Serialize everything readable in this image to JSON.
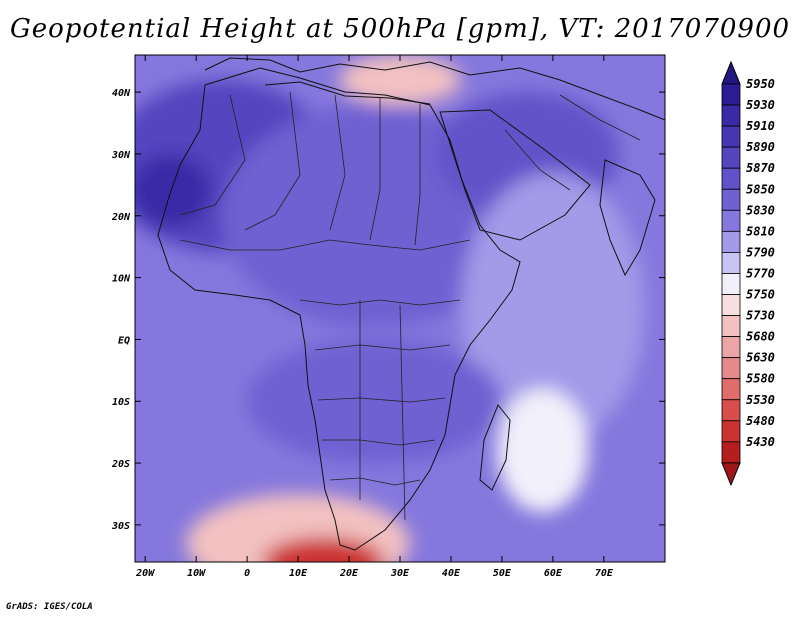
{
  "title": "Geopotential Height at 500hPa [gpm], VT: 2017070900",
  "credit": "GrADS: IGES/COLA",
  "lat_labels": [
    "40N",
    "30N",
    "20N",
    "10N",
    "EQ",
    "10S",
    "20S",
    "30S"
  ],
  "lon_labels": [
    "20W",
    "10W",
    "0",
    "10E",
    "20E",
    "30E",
    "40E",
    "50E",
    "60E",
    "70E"
  ],
  "legend": {
    "values": [
      "5950",
      "5930",
      "5910",
      "5890",
      "5870",
      "5850",
      "5830",
      "5810",
      "5790",
      "5770",
      "5750",
      "5730",
      "5680",
      "5630",
      "5580",
      "5530",
      "5480",
      "5430"
    ],
    "colors": [
      "#2c1c94",
      "#3a2aa6",
      "#4636b2",
      "#5545bf",
      "#6252c9",
      "#6f61d2",
      "#8577dd",
      "#a39ae8",
      "#c8c3f2",
      "#f2f0fb",
      "#f8dfdf",
      "#f3c1c1",
      "#eaa6a6",
      "#e58a8a",
      "#e06c6c",
      "#d94d4d",
      "#cc3232",
      "#b41e1e"
    ],
    "top_arrow_color": "#231784",
    "bottom_arrow_color": "#a01515"
  },
  "map": {
    "lon_range": [
      -22,
      82
    ],
    "lat_range": [
      -36,
      46
    ],
    "ocean_color": "#8577dd",
    "frame_color": "#000000"
  },
  "field_blobs": [
    {
      "lon": -5,
      "lat": 28,
      "rx": 22,
      "ry": 14,
      "color": "#5545bf"
    },
    {
      "lon": -15,
      "lat": 24,
      "rx": 8,
      "ry": 6,
      "color": "#3a2aa6"
    },
    {
      "lon": 25,
      "lat": 20,
      "rx": 30,
      "ry": 18,
      "color": "#6f61d2"
    },
    {
      "lon": 55,
      "lat": 30,
      "rx": 18,
      "ry": 10,
      "color": "#6252c9"
    },
    {
      "lon": 60,
      "lat": 5,
      "rx": 18,
      "ry": 22,
      "color": "#a39ae8"
    },
    {
      "lon": 25,
      "lat": -10,
      "rx": 25,
      "ry": 10,
      "color": "#6f61d2"
    },
    {
      "lon": 58,
      "lat": -18,
      "rx": 9,
      "ry": 10,
      "color": "#f2f0fb"
    },
    {
      "lon": 10,
      "lat": -33,
      "rx": 22,
      "ry": 8,
      "color": "#f3c1c1"
    },
    {
      "lon": 15,
      "lat": -36,
      "rx": 12,
      "ry": 4,
      "color": "#cc3232"
    },
    {
      "lon": 30,
      "lat": 42,
      "rx": 12,
      "ry": 4,
      "color": "#f3c1c1"
    }
  ]
}
